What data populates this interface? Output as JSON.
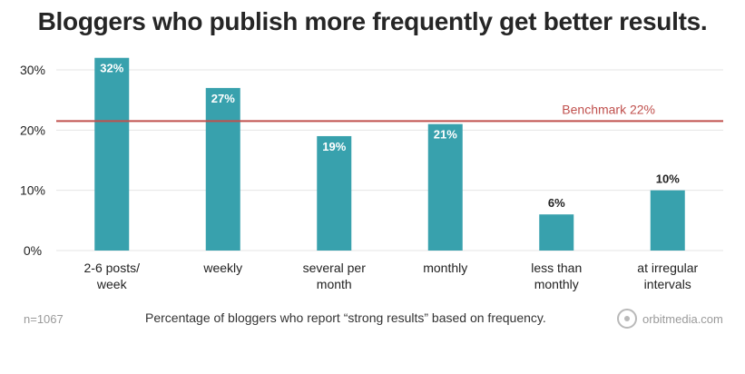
{
  "title": "Bloggers who publish more frequently get better results.",
  "footnote": "n=1067",
  "caption": "Percentage of bloggers who report “strong results” based on frequency.",
  "brand": {
    "name": "orbitmedia.com",
    "icon": "orbit-logo-icon"
  },
  "colors": {
    "bar": "#38a1ad",
    "benchmark": "#c0504d",
    "grid": "#e4e4e4",
    "text": "#222222"
  },
  "chart_data": {
    "type": "bar",
    "categories": [
      [
        "2-6 posts/",
        "week"
      ],
      [
        "weekly"
      ],
      [
        "several per",
        "month"
      ],
      [
        "monthly"
      ],
      [
        "less than",
        "monthly"
      ],
      [
        "at irregular",
        "intervals"
      ]
    ],
    "values": [
      32,
      27,
      19,
      21,
      6,
      10
    ],
    "data_labels": [
      "32%",
      "27%",
      "19%",
      "21%",
      "6%",
      "10%"
    ],
    "ylim": [
      0,
      30
    ],
    "yticks": [
      0,
      10,
      20,
      30
    ],
    "ytick_labels": [
      "0%",
      "10%",
      "20%",
      "30%"
    ],
    "grid": true,
    "benchmark": {
      "value": 21.5,
      "label": "Benchmark 22%"
    }
  }
}
